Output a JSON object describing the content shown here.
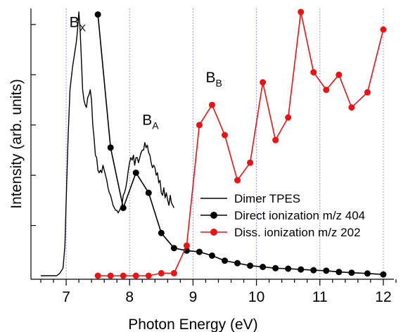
{
  "chart_data": {
    "type": "line",
    "title": "",
    "xlabel": "Photon Energy (eV)",
    "ylabel": "Intensity (arb. units)",
    "xlim": [
      6.6,
      12.3
    ],
    "ylim": [
      0,
      1.05
    ],
    "x_major_ticks": [
      7,
      8,
      9,
      10,
      11,
      12
    ],
    "x_tick_labels": [
      "7",
      "8",
      "9",
      "10",
      "11",
      "12"
    ],
    "y_tick_labels_shown": false,
    "y_ticks": [
      0.2,
      0.4,
      0.6,
      0.8,
      1.0
    ],
    "vertical_gridlines": [
      7,
      8,
      9,
      10,
      11,
      12
    ],
    "grid_color": "#9999dd",
    "legend_position": "right",
    "annotations": [
      {
        "main": "B",
        "sub": "X",
        "x": 7.05,
        "y": 0.99
      },
      {
        "main": "B",
        "sub": "A",
        "x": 8.2,
        "y": 0.6
      },
      {
        "main": "B",
        "sub": "B",
        "x": 9.2,
        "y": 0.77
      }
    ],
    "series": [
      {
        "name": "Dimer TPES",
        "color": "#000000",
        "style": "line",
        "x": [
          6.6,
          6.85,
          6.9,
          6.95,
          6.98,
          7.0,
          7.03,
          7.06,
          7.1,
          7.13,
          7.16,
          7.18,
          7.2,
          7.22,
          7.24,
          7.26,
          7.28,
          7.3,
          7.32,
          7.34,
          7.36,
          7.38,
          7.4,
          7.42,
          7.44,
          7.46,
          7.48,
          7.5,
          7.52,
          7.54,
          7.56,
          7.58,
          7.6,
          7.62,
          7.64,
          7.66,
          7.68,
          7.7,
          7.72,
          7.74,
          7.76,
          7.78,
          7.8,
          7.82,
          7.84,
          7.86,
          7.88,
          7.9,
          7.92,
          7.94,
          7.96,
          7.98,
          8.0,
          8.02,
          8.04,
          8.06,
          8.08,
          8.1,
          8.12,
          8.14,
          8.16,
          8.18,
          8.2,
          8.22,
          8.24,
          8.26,
          8.28,
          8.3,
          8.32,
          8.34,
          8.36,
          8.38,
          8.4,
          8.42,
          8.44,
          8.46,
          8.48,
          8.5,
          8.52,
          8.54,
          8.56,
          8.58,
          8.6,
          8.62,
          8.64,
          8.66,
          8.68,
          8.7
        ],
        "y": [
          0.0,
          0.0,
          0.01,
          0.03,
          0.12,
          0.3,
          0.55,
          0.74,
          0.83,
          0.88,
          0.93,
          0.98,
          1.05,
          0.98,
          0.86,
          0.74,
          0.7,
          0.68,
          0.67,
          0.71,
          0.72,
          0.74,
          0.7,
          0.6,
          0.55,
          0.48,
          0.47,
          0.42,
          0.41,
          0.42,
          0.41,
          0.44,
          0.42,
          0.4,
          0.38,
          0.35,
          0.33,
          0.32,
          0.3,
          0.28,
          0.27,
          0.26,
          0.26,
          0.25,
          0.26,
          0.27,
          0.28,
          0.32,
          0.33,
          0.35,
          0.38,
          0.42,
          0.45,
          0.47,
          0.46,
          0.48,
          0.44,
          0.47,
          0.47,
          0.45,
          0.47,
          0.49,
          0.5,
          0.5,
          0.53,
          0.51,
          0.52,
          0.49,
          0.48,
          0.45,
          0.43,
          0.44,
          0.43,
          0.4,
          0.41,
          0.37,
          0.38,
          0.33,
          0.32,
          0.35,
          0.31,
          0.33,
          0.3,
          0.28,
          0.32,
          0.29,
          0.28,
          0.27
        ]
      },
      {
        "name": "Direct ionization m/z 404",
        "color": "#000000",
        "style": "line-marker",
        "x": [
          7.5,
          7.7,
          7.9,
          8.1,
          8.3,
          8.5,
          8.7,
          8.9,
          9.1,
          9.3,
          9.5,
          9.7,
          9.9,
          10.1,
          10.3,
          10.5,
          10.7,
          10.9,
          11.1,
          11.3,
          11.5,
          11.75,
          12.0
        ],
        "y": [
          1.04,
          0.51,
          0.27,
          0.41,
          0.33,
          0.17,
          0.11,
          0.1,
          0.095,
          0.08,
          0.06,
          0.05,
          0.04,
          0.035,
          0.03,
          0.028,
          0.025,
          0.022,
          0.02,
          0.015,
          0.012,
          0.009,
          0.005
        ]
      },
      {
        "name": "Diss. ionization m/z 202",
        "color": "#ee1111",
        "style": "line-marker",
        "x": [
          7.5,
          7.7,
          7.9,
          8.1,
          8.3,
          8.5,
          8.7,
          8.9,
          9.1,
          9.3,
          9.5,
          9.7,
          9.9,
          10.1,
          10.3,
          10.5,
          10.7,
          10.9,
          11.1,
          11.3,
          11.5,
          11.75,
          12.0
        ],
        "y": [
          0.0,
          0.0,
          0.0,
          0.0,
          0.0,
          0.01,
          0.01,
          0.12,
          0.6,
          0.68,
          0.56,
          0.38,
          0.45,
          0.77,
          0.54,
          0.63,
          1.05,
          0.81,
          0.74,
          0.8,
          0.67,
          0.73,
          0.98
        ]
      }
    ]
  }
}
